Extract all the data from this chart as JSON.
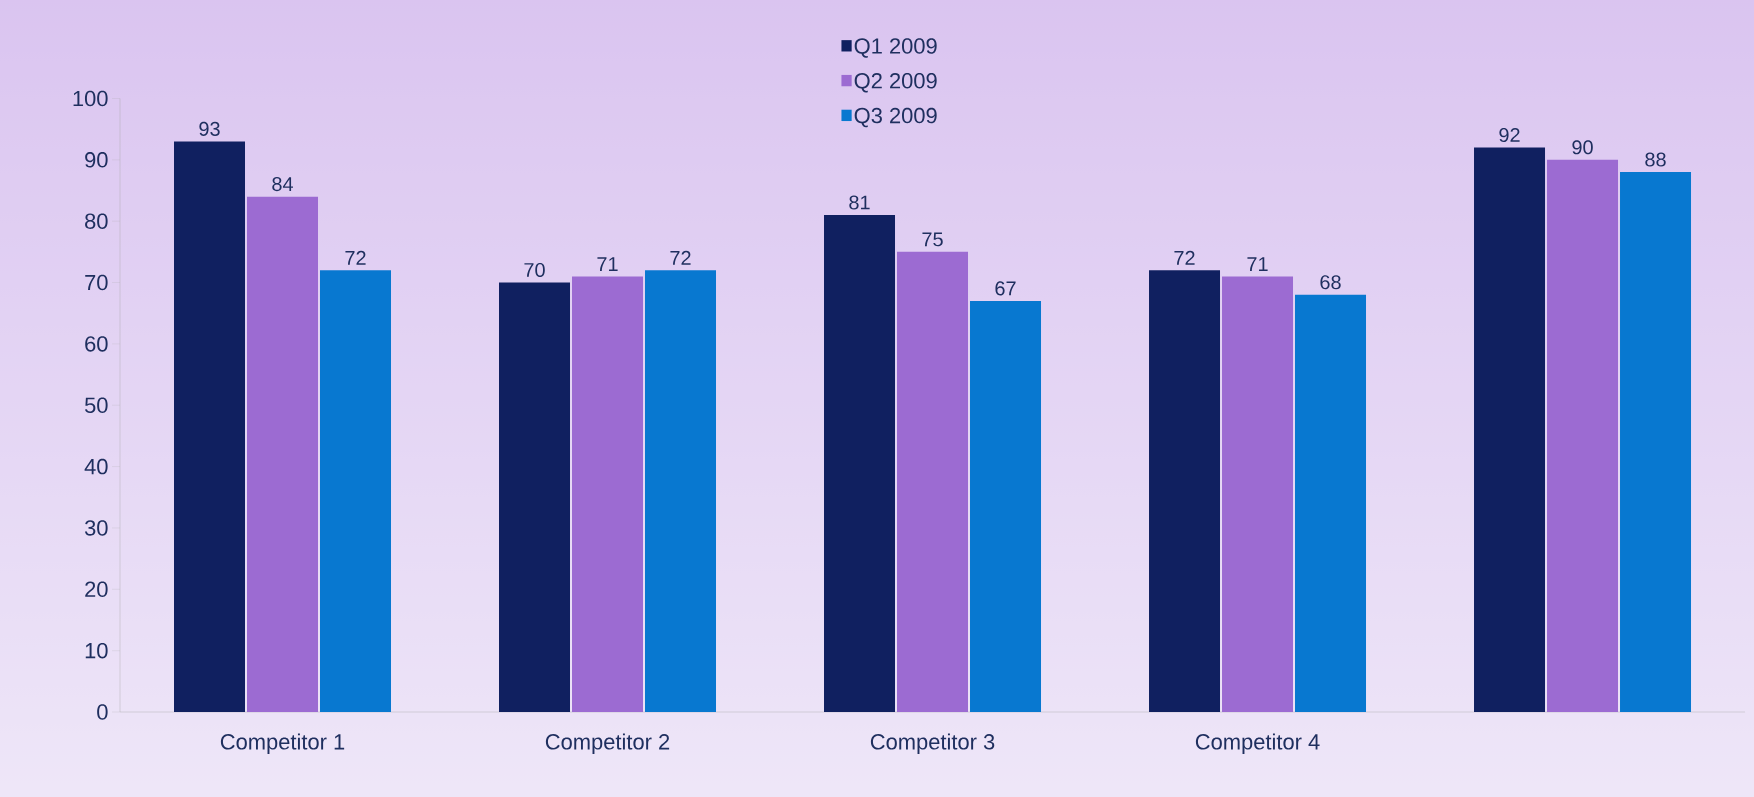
{
  "chart_data": {
    "type": "bar",
    "categories": [
      "Competitor 1",
      "Competitor 2",
      "Competitor 3",
      "Competitor 4",
      null
    ],
    "series": [
      {
        "name": "Q1 2009",
        "color": "#102060",
        "values": [
          93,
          70,
          81,
          72,
          92
        ]
      },
      {
        "name": "Q2 2009",
        "color": "#9c6bd2",
        "values": [
          84,
          71,
          75,
          71,
          90
        ]
      },
      {
        "name": "Q3 2009",
        "color": "#0878d0",
        "values": [
          72,
          72,
          67,
          68,
          88
        ]
      }
    ],
    "ylim": [
      0,
      100
    ],
    "yticks": [
      0,
      10,
      20,
      30,
      40,
      50,
      60,
      70,
      80,
      90,
      100
    ],
    "data_labels": true,
    "legend": "top",
    "grid": false
  }
}
